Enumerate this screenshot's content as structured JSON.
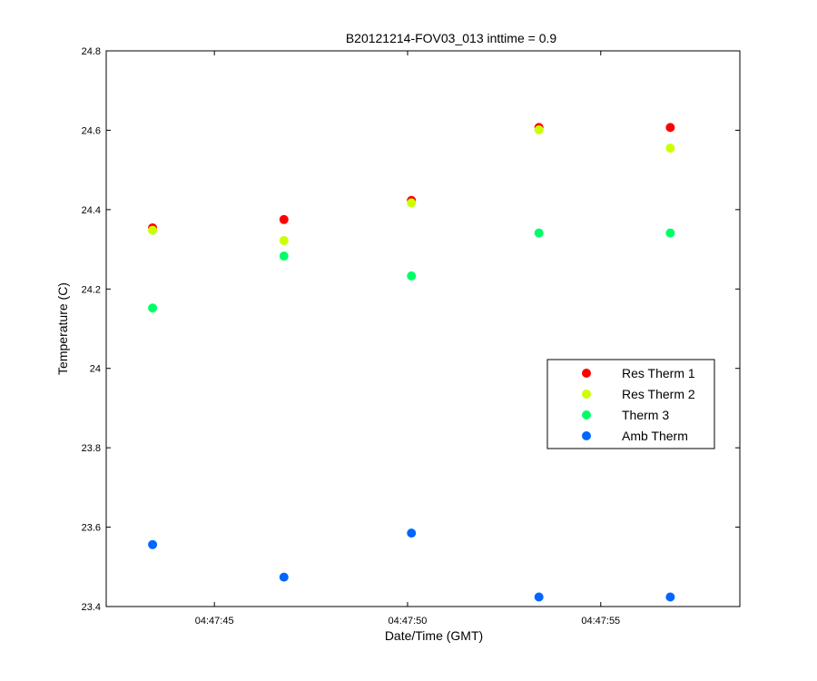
{
  "chart_data": {
    "type": "scatter",
    "title": "B20121214-FOV03_013 inttime = 0.9",
    "xlabel": "Date/Time (GMT)",
    "ylabel": "Temperature (C)",
    "x_ticks": [
      "04:47:45",
      "04:47:50",
      "04:47:55"
    ],
    "x_tick_seconds": [
      45,
      50,
      55
    ],
    "xlim_seconds": [
      42.2,
      58.6
    ],
    "ylim": [
      23.4,
      24.8
    ],
    "y_ticks": [
      23.4,
      23.6,
      23.8,
      24,
      24.2,
      24.4,
      24.6,
      24.8
    ],
    "y_tick_labels": [
      "23.4",
      "23.6",
      "23.8",
      "24",
      "24.2",
      "24.4",
      "24.6",
      "24.8"
    ],
    "x_seconds": [
      43.4,
      46.8,
      50.1,
      53.4,
      56.8
    ],
    "legend_position": "right",
    "grid": false,
    "series": [
      {
        "name": "Res Therm 1",
        "color": "#ff0000",
        "values": [
          24.354,
          24.375,
          24.423,
          24.607,
          24.607
        ]
      },
      {
        "name": "Res Therm 2",
        "color": "#ccff00",
        "values": [
          24.348,
          24.322,
          24.417,
          24.601,
          24.555
        ]
      },
      {
        "name": "Therm 3",
        "color": "#00ff66",
        "values": [
          24.152,
          24.283,
          24.233,
          24.341,
          24.341
        ]
      },
      {
        "name": "Amb Therm",
        "color": "#0066ff",
        "values": [
          23.556,
          23.474,
          23.585,
          23.424,
          23.424
        ]
      }
    ]
  }
}
